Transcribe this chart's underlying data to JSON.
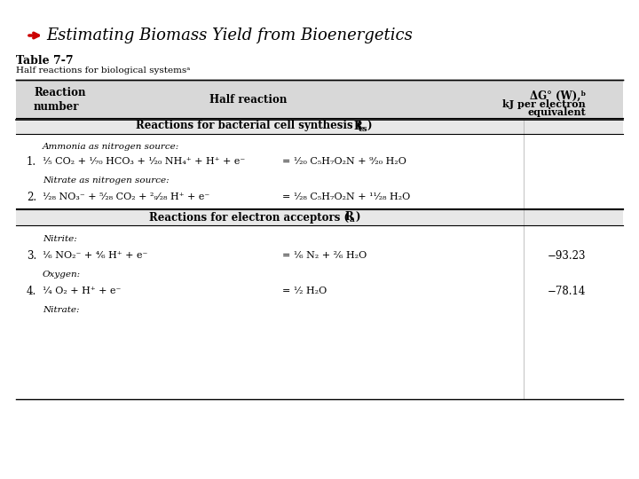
{
  "title": "Estimating Biomass Yield from Bioenergetics",
  "table_title": "Table 7-7",
  "table_subtitle": "Half reactions for biological systemsᵃ",
  "bg_color": "#f0f0f0",
  "header_col1": "Reaction\nnumber",
  "header_col2": "Half reaction",
  "header_col3": "ΔG° (W),ᵇ\nkJ per electron\nequivalent",
  "section1_header": "Reactions for bacterial cell synthesis (Rₑₐ)",
  "section2_header": "Reactions for electron acceptors (Rₐ)",
  "rows": [
    {
      "num": "1.",
      "sublabel": "Ammonia as nitrogen source:",
      "reaction_left": "¹⁄₅ CO₂ + ¹⁄₇₀ HCO₃ + ¹⁄₂₀ NH₄⁺ + H⁺ + e⁻",
      "reaction_right": "= ¹⁄₂₀ C₅H₇O₂N + ⁹⁄₂₀ H₂O",
      "delta_g": ""
    },
    {
      "num": "2.",
      "sublabel": "Nitrate as nitrogen source:",
      "reaction_left": "¹⁄₂₈ NO₃⁻ + ⁵⁄₂₈ CO₂ + ²₉⁄₂₈ H⁺ + e⁻",
      "reaction_right": "= ¹⁄₂₈ C₅H₇O₂N + ¹¹⁄₂₈ H₂O",
      "delta_g": ""
    },
    {
      "num": "3.",
      "sublabel": "Nitrite:",
      "reaction_left": "¹⁄₆ NO₂⁻ + ⁴⁄₆ H⁺ + e⁻",
      "reaction_right": "= ¹⁄₆ N₂ + ²⁄₆ H₂O",
      "delta_g": "−93.23"
    },
    {
      "num": "4.",
      "sublabel": "Oxygen:",
      "reaction_left": "¹⁄₄ O₂ + H⁺ + e⁻",
      "reaction_right": "= ¹⁄₂ H₂O",
      "delta_g": "−78.14"
    }
  ],
  "nitrate_label": "Nitrate:"
}
